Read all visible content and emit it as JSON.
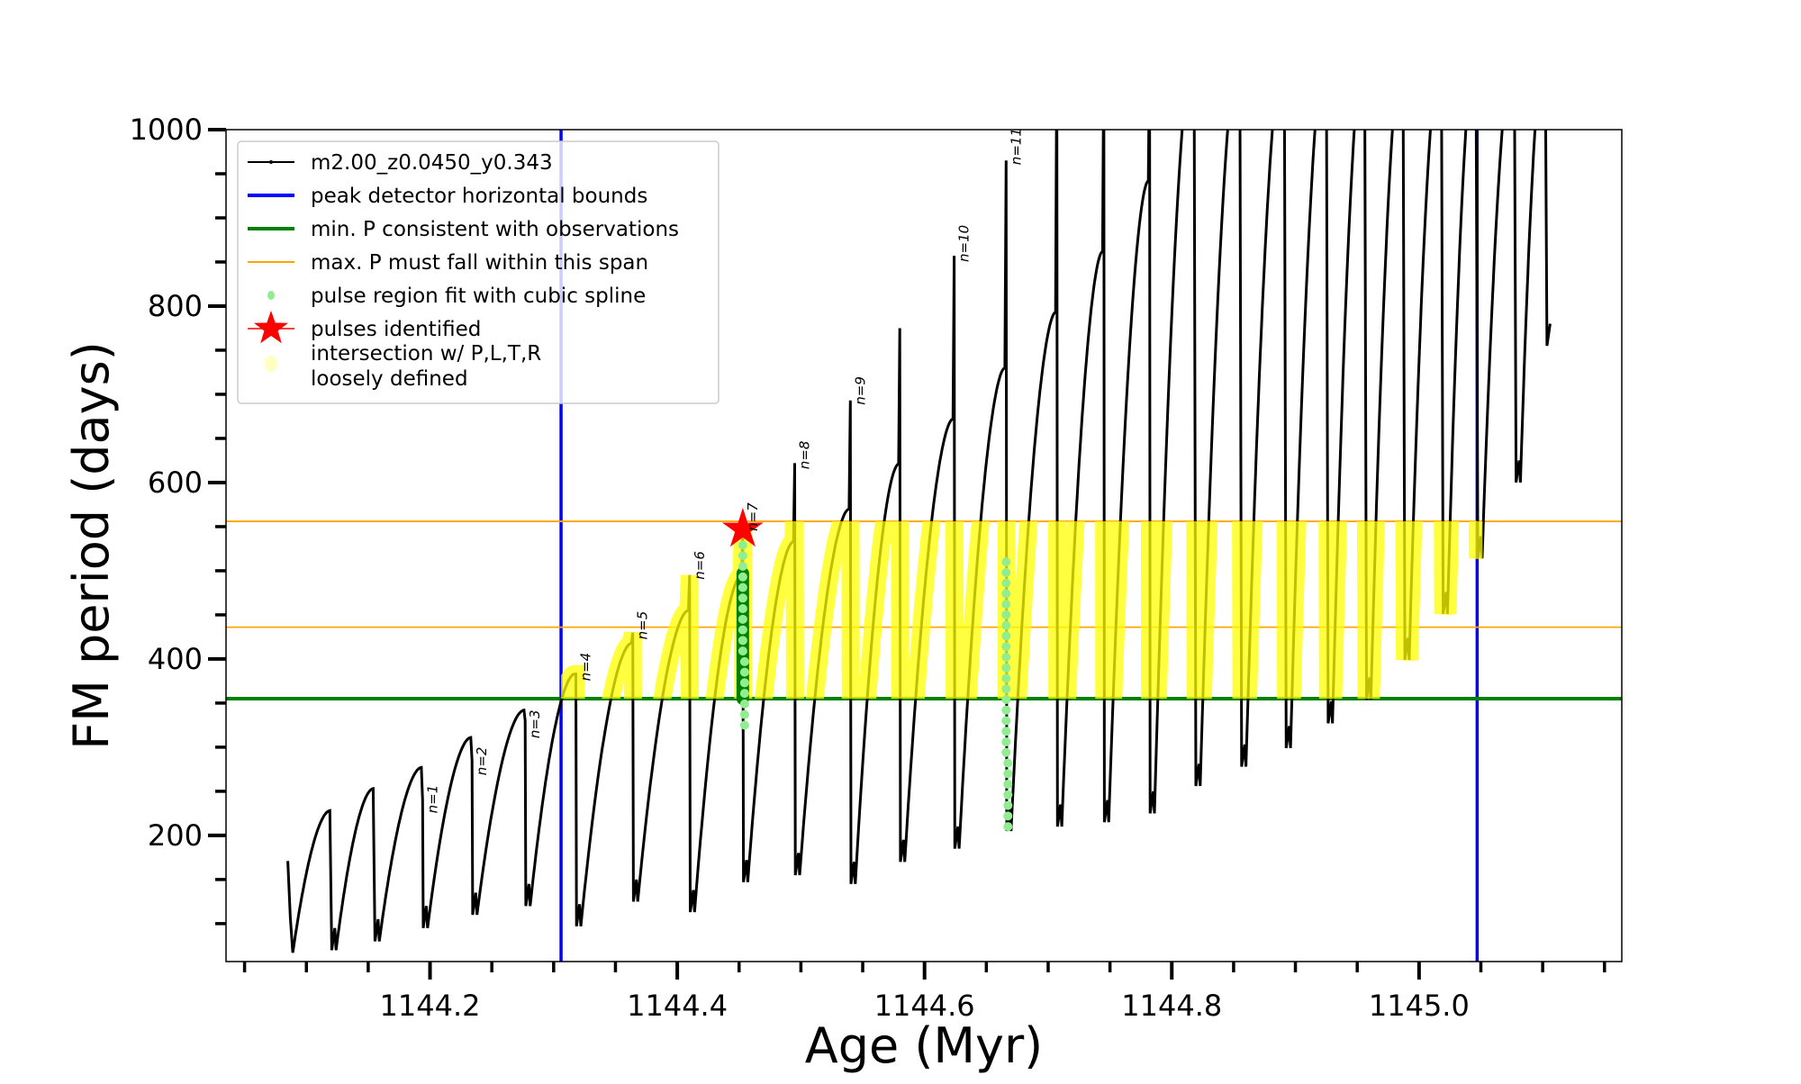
{
  "chart_data": {
    "type": "line",
    "title": "",
    "xlabel": "Age (Myr)",
    "ylabel": "FM period (days)",
    "xlim": [
      1144.035,
      1145.164
    ],
    "ylim": [
      57,
      1000
    ],
    "xticks_major": [
      1144.2,
      1144.4,
      1144.6,
      1144.8,
      1145.0
    ],
    "xtick_labels": [
      "1144.2",
      "1144.4",
      "1144.6",
      "1144.8",
      "1145.0"
    ],
    "xticks_minor_step": 0.05,
    "xticks_range": [
      1144.05,
      1145.15
    ],
    "yticks_major": [
      200,
      400,
      600,
      800,
      1000
    ],
    "ytick_labels": [
      "200",
      "400",
      "600",
      "800",
      "1000"
    ],
    "yticks_minor_step": 50,
    "grid": false,
    "legend_position": "top-left",
    "legend": [
      {
        "label": "m2.00_z0.0450_y0.343",
        "kind": "line-marker",
        "color": "#000000"
      },
      {
        "label": "peak detector horizontal bounds",
        "kind": "line",
        "color": "#0000ff"
      },
      {
        "label": "min. P consistent with observations",
        "kind": "line",
        "color": "#008000"
      },
      {
        "label": "max. P must fall within this span",
        "kind": "thin-line",
        "color": "#ffa500"
      },
      {
        "label": "pulse region fit with cubic spline",
        "kind": "dot",
        "color": "#90ee90"
      },
      {
        "label": "pulses identified",
        "kind": "star",
        "color": "#ff0000"
      },
      {
        "label": "intersection w/ P,L,T,R\nloosely defined",
        "label_lines": [
          "intersection w/ P,L,T,R",
          "loosely defined"
        ],
        "kind": "dot",
        "color": "#ffffc0"
      }
    ],
    "vertical_bounds": [
      1144.306,
      1145.047
    ],
    "min_P": 355,
    "max_P_span": [
      436,
      556
    ],
    "start": {
      "age": 1144.085,
      "P": 171,
      "min": 67
    },
    "cycles": [
      {
        "drop_age": 1144.12,
        "peak": 228,
        "min_after": 70
      },
      {
        "drop_age": 1144.155,
        "peak": 253,
        "min_after": 80
      },
      {
        "drop_age": 1144.194,
        "peak": 277,
        "min_after": 95,
        "spike": 240
      },
      {
        "drop_age": 1144.234,
        "peak": 311,
        "min_after": 110,
        "spike": 285
      },
      {
        "drop_age": 1144.277,
        "peak": 342,
        "min_after": 120,
        "spike": 330
      },
      {
        "drop_age": 1144.318,
        "peak": 383,
        "min_after": 97,
        "spike": 383
      },
      {
        "drop_age": 1144.364,
        "peak": 418,
        "min_after": 125,
        "spike": 430
      },
      {
        "drop_age": 1144.41,
        "peak": 455,
        "min_after": 113,
        "spike": 495
      },
      {
        "drop_age": 1144.453,
        "peak": 495,
        "min_after": 147,
        "spike": 547
      },
      {
        "drop_age": 1144.495,
        "peak": 533,
        "min_after": 155,
        "spike": 622
      },
      {
        "drop_age": 1144.54,
        "peak": 570,
        "min_after": 145,
        "spike": 693
      },
      {
        "drop_age": 1144.58,
        "peak": 621,
        "min_after": 170,
        "spike": 775
      },
      {
        "drop_age": 1144.624,
        "peak": 672,
        "min_after": 185,
        "spike": 857
      },
      {
        "drop_age": 1144.666,
        "peak": 730,
        "min_after": 205,
        "spike": 965
      },
      {
        "drop_age": 1144.707,
        "peak": 793,
        "min_after": 210,
        "spike": 1100
      },
      {
        "drop_age": 1144.745,
        "peak": 862,
        "min_after": 215,
        "spike": 1100
      },
      {
        "drop_age": 1144.782,
        "peak": 942,
        "min_after": 225,
        "spike": 1100
      },
      {
        "drop_age": 1144.819,
        "peak": 1100,
        "min_after": 256
      },
      {
        "drop_age": 1144.856,
        "peak": 1100,
        "min_after": 278
      },
      {
        "drop_age": 1144.892,
        "peak": 1100,
        "min_after": 299
      },
      {
        "drop_age": 1144.926,
        "peak": 1100,
        "min_after": 327
      },
      {
        "drop_age": 1144.957,
        "peak": 1100,
        "min_after": 354
      },
      {
        "drop_age": 1144.988,
        "peak": 1100,
        "min_after": 399
      },
      {
        "drop_age": 1145.019,
        "peak": 1100,
        "min_after": 451
      },
      {
        "drop_age": 1145.047,
        "peak": 1100,
        "min_after": 514
      },
      {
        "drop_age": 1145.078,
        "peak": 1100,
        "min_after": 600
      },
      {
        "drop_age": 1145.103,
        "peak": 1100,
        "min_after": 755
      }
    ],
    "pulse_labels": [
      {
        "text": "n=1",
        "age": 1144.194,
        "P": 225
      },
      {
        "text": "n=2",
        "age": 1144.234,
        "P": 268
      },
      {
        "text": "n=3",
        "age": 1144.277,
        "P": 310
      },
      {
        "text": "n=4",
        "age": 1144.318,
        "P": 375
      },
      {
        "text": "n=5",
        "age": 1144.364,
        "P": 422
      },
      {
        "text": "n=6",
        "age": 1144.41,
        "P": 490
      },
      {
        "text": "n=7",
        "age": 1144.453,
        "P": 545
      },
      {
        "text": "n=8",
        "age": 1144.495,
        "P": 615
      },
      {
        "text": "n=9",
        "age": 1144.54,
        "P": 688
      },
      {
        "text": "n=10",
        "age": 1144.624,
        "P": 850
      },
      {
        "text": "n=11",
        "age": 1144.666,
        "P": 960
      }
    ],
    "identified_pulse": {
      "age": 1144.453,
      "P": 547
    },
    "spline_fit_dark": {
      "age": 1144.453,
      "P_range": [
        355,
        497
      ]
    },
    "spline_fit_light": [
      {
        "age": 1144.453,
        "P_range": [
          325,
          540
        ]
      },
      {
        "age": 1144.666,
        "P_range": [
          210,
          520
        ]
      }
    ]
  }
}
